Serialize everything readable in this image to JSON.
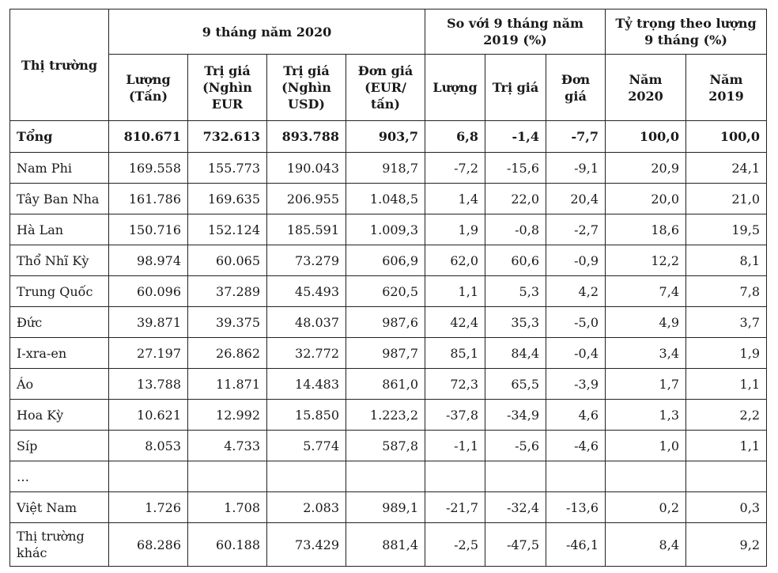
{
  "headers": {
    "market": "Thị trường",
    "group_2020": "9 tháng năm 2020",
    "group_compare": "So với 9 tháng năm 2019 (%)",
    "group_share": "Tỷ trọng theo lượng 9 tháng (%)",
    "sub": {
      "vol": "Lượng (Tấn)",
      "val_eur": "Trị giá (Nghìn EUR",
      "val_usd": "Trị giá (Nghìn USD)",
      "price": "Đơn giá (EUR/ tấn)",
      "cmp_vol": "Lượng",
      "cmp_val": "Trị giá",
      "cmp_price": "Đơn giá",
      "share_2020": "Năm 2020",
      "share_2019": "Năm 2019"
    }
  },
  "rows": [
    {
      "market": "Tổng",
      "vol": "810.671",
      "val_eur": "732.613",
      "val_usd": "893.788",
      "price": "903,7",
      "cmp_vol": "6,8",
      "cmp_val": "-1,4",
      "cmp_price": "-7,7",
      "s2020": "100,0",
      "s2019": "100,0"
    },
    {
      "market": "Nam Phi",
      "vol": "169.558",
      "val_eur": "155.773",
      "val_usd": "190.043",
      "price": "918,7",
      "cmp_vol": "-7,2",
      "cmp_val": "-15,6",
      "cmp_price": "-9,1",
      "s2020": "20,9",
      "s2019": "24,1"
    },
    {
      "market": "Tây Ban Nha",
      "vol": "161.786",
      "val_eur": "169.635",
      "val_usd": "206.955",
      "price": "1.048,5",
      "cmp_vol": "1,4",
      "cmp_val": "22,0",
      "cmp_price": "20,4",
      "s2020": "20,0",
      "s2019": "21,0"
    },
    {
      "market": "Hà Lan",
      "vol": "150.716",
      "val_eur": "152.124",
      "val_usd": "185.591",
      "price": "1.009,3",
      "cmp_vol": "1,9",
      "cmp_val": "-0,8",
      "cmp_price": "-2,7",
      "s2020": "18,6",
      "s2019": "19,5"
    },
    {
      "market": "Thổ Nhĩ Kỳ",
      "vol": "98.974",
      "val_eur": "60.065",
      "val_usd": "73.279",
      "price": "606,9",
      "cmp_vol": "62,0",
      "cmp_val": "60,6",
      "cmp_price": "-0,9",
      "s2020": "12,2",
      "s2019": "8,1"
    },
    {
      "market": "Trung Quốc",
      "vol": "60.096",
      "val_eur": "37.289",
      "val_usd": "45.493",
      "price": "620,5",
      "cmp_vol": "1,1",
      "cmp_val": "5,3",
      "cmp_price": "4,2",
      "s2020": "7,4",
      "s2019": "7,8"
    },
    {
      "market": "Đức",
      "vol": "39.871",
      "val_eur": "39.375",
      "val_usd": "48.037",
      "price": "987,6",
      "cmp_vol": "42,4",
      "cmp_val": "35,3",
      "cmp_price": "-5,0",
      "s2020": "4,9",
      "s2019": "3,7"
    },
    {
      "market": "I-xra-en",
      "vol": "27.197",
      "val_eur": "26.862",
      "val_usd": "32.772",
      "price": "987,7",
      "cmp_vol": "85,1",
      "cmp_val": "84,4",
      "cmp_price": "-0,4",
      "s2020": "3,4",
      "s2019": "1,9"
    },
    {
      "market": "Áo",
      "vol": "13.788",
      "val_eur": "11.871",
      "val_usd": "14.483",
      "price": "861,0",
      "cmp_vol": "72,3",
      "cmp_val": "65,5",
      "cmp_price": "-3,9",
      "s2020": "1,7",
      "s2019": "1,1"
    },
    {
      "market": "Hoa Kỳ",
      "vol": "10.621",
      "val_eur": "12.992",
      "val_usd": "15.850",
      "price": "1.223,2",
      "cmp_vol": "-37,8",
      "cmp_val": "-34,9",
      "cmp_price": "4,6",
      "s2020": "1,3",
      "s2019": "2,2"
    },
    {
      "market": "Síp",
      "vol": "8.053",
      "val_eur": "4.733",
      "val_usd": "5.774",
      "price": "587,8",
      "cmp_vol": "-1,1",
      "cmp_val": "-5,6",
      "cmp_price": "-4,6",
      "s2020": "1,0",
      "s2019": "1,1"
    },
    {
      "market": "…",
      "vol": "",
      "val_eur": "",
      "val_usd": "",
      "price": "",
      "cmp_vol": "",
      "cmp_val": "",
      "cmp_price": "",
      "s2020": "",
      "s2019": ""
    },
    {
      "market": "Việt Nam",
      "vol": "1.726",
      "val_eur": "1.708",
      "val_usd": "2.083",
      "price": "989,1",
      "cmp_vol": "-21,7",
      "cmp_val": "-32,4",
      "cmp_price": "-13,6",
      "s2020": "0,2",
      "s2019": "0,3"
    },
    {
      "market": "Thị trường khác",
      "vol": "68.286",
      "val_eur": "60.188",
      "val_usd": "73.429",
      "price": "881,4",
      "cmp_vol": "-2,5",
      "cmp_val": "-47,5",
      "cmp_price": "-46,1",
      "s2020": "8,4",
      "s2019": "9,2"
    }
  ]
}
